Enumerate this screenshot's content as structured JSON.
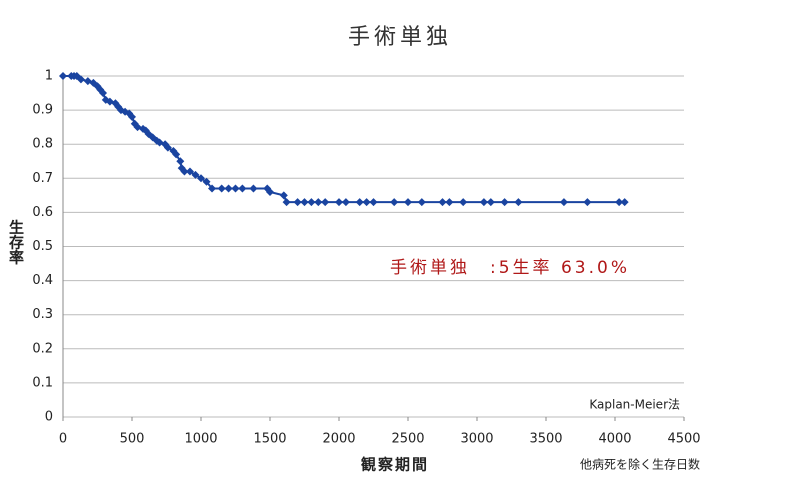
{
  "chart_data": {
    "type": "line",
    "title": "手術単独",
    "y_label": "生存率",
    "x_label": "観察期間",
    "x_note": "他病死を除く生存日数",
    "method_note": "Kaplan-Meier法",
    "annotation": "手術単独　:5生率 63.0%",
    "xlim": [
      0,
      4500
    ],
    "xticks": [
      0,
      500,
      1000,
      1500,
      2000,
      2500,
      3000,
      3500,
      4000,
      4500
    ],
    "ylim": [
      0,
      1
    ],
    "yticks": [
      0,
      0.1,
      0.2,
      0.3,
      0.4,
      0.5,
      0.6,
      0.7,
      0.8,
      0.9,
      1
    ],
    "grid": true,
    "x": [
      0,
      60,
      80,
      100,
      130,
      180,
      220,
      250,
      270,
      290,
      310,
      340,
      380,
      400,
      420,
      450,
      480,
      500,
      520,
      540,
      580,
      600,
      620,
      650,
      680,
      700,
      740,
      760,
      800,
      820,
      850,
      860,
      880,
      920,
      960,
      1000,
      1040,
      1080,
      1150,
      1200,
      1250,
      1300,
      1380,
      1480,
      1500,
      1600,
      1620,
      1700,
      1750,
      1800,
      1850,
      1900,
      2000,
      2050,
      2150,
      2200,
      2250,
      2400,
      2500,
      2600,
      2750,
      2800,
      2900,
      3050,
      3100,
      3200,
      3300,
      3630,
      3800,
      4030,
      4070
    ],
    "series": [
      {
        "name": "手術単独",
        "color": "#1a44a0",
        "values": [
          1.0,
          1.0,
          1.0,
          1.0,
          0.99,
          0.985,
          0.98,
          0.97,
          0.96,
          0.95,
          0.93,
          0.925,
          0.92,
          0.91,
          0.9,
          0.895,
          0.89,
          0.88,
          0.86,
          0.85,
          0.845,
          0.84,
          0.83,
          0.82,
          0.81,
          0.805,
          0.8,
          0.79,
          0.78,
          0.77,
          0.75,
          0.73,
          0.72,
          0.72,
          0.71,
          0.7,
          0.69,
          0.67,
          0.67,
          0.67,
          0.67,
          0.67,
          0.67,
          0.67,
          0.66,
          0.65,
          0.63,
          0.63,
          0.63,
          0.63,
          0.63,
          0.63,
          0.63,
          0.63,
          0.63,
          0.63,
          0.63,
          0.63,
          0.63,
          0.63,
          0.63,
          0.63,
          0.63,
          0.63,
          0.63,
          0.63,
          0.63,
          0.63,
          0.63,
          0.63,
          0.63
        ]
      }
    ]
  }
}
